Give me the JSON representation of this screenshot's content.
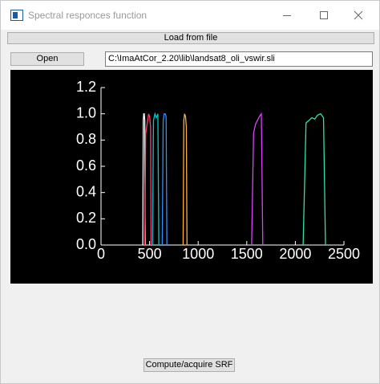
{
  "window": {
    "title": "Spectral responces function"
  },
  "toolbar": {
    "load_button": "Load from file",
    "open_button": "Open",
    "path": "C:\\ImaAtCor_2.20\\lib\\landsat8_oli_vswir.sli"
  },
  "chart_data": {
    "type": "line",
    "xlim": [
      0,
      2500
    ],
    "xticks": [
      0,
      500,
      1000,
      1500,
      2000,
      2500
    ],
    "ylim": [
      0,
      1.2
    ],
    "yticks": [
      {
        "value": 0,
        "label": "0.0"
      },
      {
        "value": 0.2,
        "label": "0.2"
      },
      {
        "value": 0.4,
        "label": "0.4"
      },
      {
        "value": 0.6,
        "label": "0.6"
      },
      {
        "value": 0.8,
        "label": "0.8"
      },
      {
        "value": 1,
        "label": "1.0"
      },
      {
        "value": 1.2,
        "label": "1.2"
      }
    ],
    "grid": false,
    "series": [
      {
        "color": "#ffffff",
        "x": [
          430,
          435,
          440,
          445,
          450,
          455
        ],
        "values": [
          0,
          0.95,
          1.0,
          1.0,
          0.95,
          0
        ]
      },
      {
        "color": "#ff3b6e",
        "x": [
          450,
          460,
          470,
          480,
          490,
          500,
          510,
          515
        ],
        "values": [
          0,
          0.85,
          0.9,
          0.95,
          1.0,
          0.98,
          0.9,
          0
        ]
      },
      {
        "color": "#00c8c8",
        "x": [
          530,
          540,
          555,
          570,
          585,
          595
        ],
        "values": [
          0,
          0.95,
          1.0,
          0.97,
          1.0,
          0
        ]
      },
      {
        "color": "#2f8fff",
        "x": [
          630,
          640,
          650,
          660,
          670,
          678
        ],
        "values": [
          0,
          0.95,
          1.0,
          1.0,
          0.98,
          0
        ]
      },
      {
        "color": "#ffb030",
        "x": [
          845,
          852,
          860,
          870,
          878,
          885
        ],
        "values": [
          0,
          0.95,
          1.0,
          0.98,
          0.9,
          0
        ]
      },
      {
        "color": "#e040ff",
        "x": [
          1550,
          1570,
          1590,
          1610,
          1630,
          1650,
          1665
        ],
        "values": [
          0,
          0.85,
          0.92,
          0.95,
          0.98,
          1.0,
          0
        ]
      },
      {
        "color": "#30e0b0",
        "x": [
          2080,
          2110,
          2140,
          2170,
          2200,
          2230,
          2260,
          2290,
          2310
        ],
        "values": [
          0,
          0.93,
          0.95,
          0.97,
          0.96,
          0.99,
          1.0,
          0.97,
          0
        ]
      }
    ]
  },
  "compute_button": "Compute/acquire SRF"
}
